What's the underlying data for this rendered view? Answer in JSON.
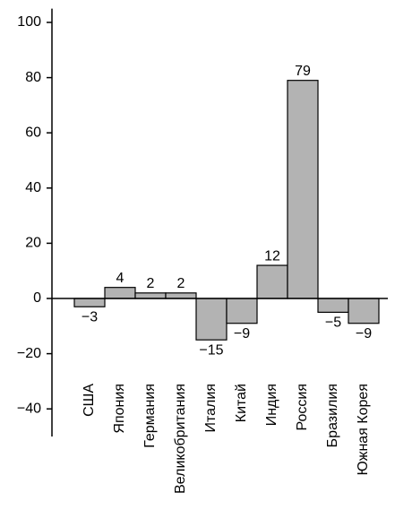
{
  "chart_data": {
    "type": "bar",
    "categories": [
      "США",
      "Япония",
      "Германия",
      "Великобритания",
      "Италия",
      "Китай",
      "Индия",
      "Россия",
      "Бразилия",
      "Южная Корея"
    ],
    "values": [
      -3,
      4,
      2,
      2,
      -15,
      -9,
      12,
      79,
      -5,
      -9
    ],
    "value_labels": [
      "−3",
      "4",
      "2",
      "2",
      "−15",
      "−9",
      "12",
      "79",
      "−5",
      "−9"
    ],
    "color": "#b3b3b3",
    "ylim": [
      -50,
      105
    ],
    "yticks": [
      {
        "value": -40,
        "label": "−40"
      },
      {
        "value": -20,
        "label": "−20"
      },
      0,
      20,
      40,
      60,
      80,
      100
    ],
    "grid": false
  }
}
